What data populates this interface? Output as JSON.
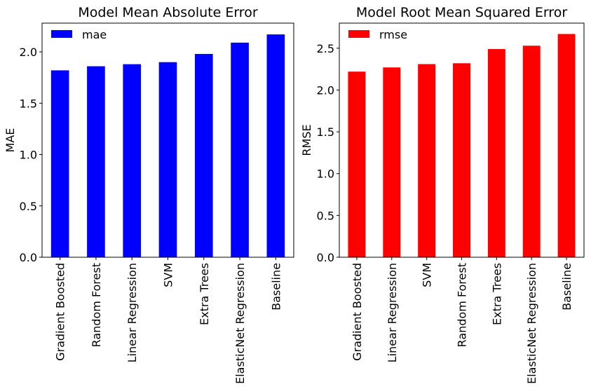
{
  "chart_data": [
    {
      "type": "bar",
      "title": "Model Mean Absolute Error",
      "xlabel": "",
      "ylabel": "MAE",
      "ylim": [
        0,
        2.28
      ],
      "yticks": [
        "0.0",
        "0.5",
        "1.0",
        "1.5",
        "2.0"
      ],
      "ytick_values": [
        0,
        0.5,
        1.0,
        1.5,
        2.0
      ],
      "categories": [
        "Gradient Boosted",
        "Random Forest",
        "Linear Regression",
        "SVM",
        "Extra Trees",
        "ElasticNet Regression",
        "Baseline"
      ],
      "series": [
        {
          "name": "mae",
          "color": "#0000ff",
          "values": [
            1.82,
            1.86,
            1.88,
            1.9,
            1.98,
            2.09,
            2.17
          ]
        }
      ],
      "legend_position": "top-left",
      "grid": false
    },
    {
      "type": "bar",
      "title": "Model Root Mean Squared Error",
      "xlabel": "",
      "ylabel": "RMSE",
      "ylim": [
        0,
        2.8
      ],
      "yticks": [
        "0.0",
        "0.5",
        "1.0",
        "1.5",
        "2.0",
        "2.5"
      ],
      "ytick_values": [
        0,
        0.5,
        1.0,
        1.5,
        2.0,
        2.5
      ],
      "categories": [
        "Gradient Boosted",
        "Linear Regression",
        "SVM",
        "Random Forest",
        "Extra Trees",
        "ElasticNet Regression",
        "Baseline"
      ],
      "series": [
        {
          "name": "rmse",
          "color": "#ff0000",
          "values": [
            2.22,
            2.27,
            2.31,
            2.32,
            2.49,
            2.53,
            2.67
          ]
        }
      ],
      "legend_position": "top-left",
      "grid": false
    }
  ]
}
